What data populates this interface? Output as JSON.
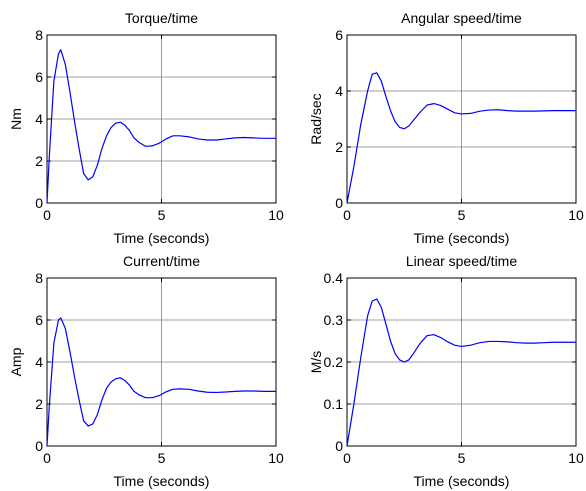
{
  "figure": {
    "background": "#ffffff",
    "line_color": "#0000ff",
    "grid_color": "#808080"
  },
  "chart_data": [
    {
      "type": "line",
      "title": "Torque/time",
      "xlabel": "Time (seconds)",
      "ylabel": "Nm",
      "xlim": [
        0,
        10
      ],
      "ylim": [
        0,
        8
      ],
      "xticks": [
        0,
        5,
        10
      ],
      "yticks": [
        0,
        2,
        4,
        6,
        8
      ],
      "xtick_labels": [
        "0",
        "5",
        "10"
      ],
      "ytick_labels": [
        "0",
        "2",
        "4",
        "6",
        "8"
      ],
      "grid": true,
      "series": [
        {
          "color": "#0000ff",
          "x": [
            0,
            0.1,
            0.3,
            0.5,
            0.6,
            0.8,
            1.0,
            1.2,
            1.4,
            1.6,
            1.8,
            2.0,
            2.2,
            2.4,
            2.6,
            2.8,
            3.0,
            3.2,
            3.4,
            3.6,
            3.8,
            4.0,
            4.3,
            4.6,
            4.9,
            5.2,
            5.5,
            5.8,
            6.2,
            6.6,
            7.0,
            7.4,
            7.8,
            8.2,
            8.6,
            9.0,
            9.5,
            10.0
          ],
          "y": [
            0,
            2.2,
            5.8,
            7.1,
            7.3,
            6.6,
            5.3,
            3.9,
            2.6,
            1.4,
            1.1,
            1.25,
            1.8,
            2.6,
            3.2,
            3.6,
            3.8,
            3.85,
            3.7,
            3.45,
            3.1,
            2.9,
            2.7,
            2.72,
            2.85,
            3.05,
            3.2,
            3.2,
            3.15,
            3.05,
            3.0,
            3.0,
            3.05,
            3.1,
            3.12,
            3.1,
            3.08,
            3.08
          ]
        }
      ]
    },
    {
      "type": "line",
      "title": "Angular speed/time",
      "xlabel": "Time (seconds)",
      "ylabel": "Rad/sec",
      "xlim": [
        0,
        10
      ],
      "ylim": [
        0,
        6
      ],
      "xticks": [
        0,
        5,
        10
      ],
      "yticks": [
        0,
        2,
        4,
        6
      ],
      "xtick_labels": [
        "0",
        "5",
        "10"
      ],
      "ytick_labels": [
        "0",
        "2",
        "4",
        "6"
      ],
      "grid": true,
      "series": [
        {
          "color": "#0000ff",
          "x": [
            0,
            0.3,
            0.6,
            0.9,
            1.1,
            1.3,
            1.5,
            1.7,
            1.9,
            2.1,
            2.3,
            2.5,
            2.7,
            2.9,
            3.2,
            3.5,
            3.8,
            4.1,
            4.4,
            4.7,
            5.0,
            5.4,
            5.8,
            6.2,
            6.6,
            7.0,
            7.4,
            7.8,
            8.2,
            8.6,
            9.0,
            9.5,
            10.0
          ],
          "y": [
            0,
            1.3,
            2.8,
            4.0,
            4.6,
            4.65,
            4.35,
            3.8,
            3.3,
            2.9,
            2.7,
            2.65,
            2.75,
            2.95,
            3.25,
            3.5,
            3.55,
            3.48,
            3.35,
            3.22,
            3.18,
            3.2,
            3.28,
            3.32,
            3.33,
            3.3,
            3.28,
            3.28,
            3.28,
            3.29,
            3.3,
            3.3,
            3.3
          ]
        }
      ]
    },
    {
      "type": "line",
      "title": "Current/time",
      "xlabel": "Time (seconds)",
      "ylabel": "Amp",
      "xlim": [
        0,
        10
      ],
      "ylim": [
        0,
        8
      ],
      "xticks": [
        0,
        5,
        10
      ],
      "yticks": [
        0,
        2,
        4,
        6,
        8
      ],
      "xtick_labels": [
        "0",
        "5",
        "10"
      ],
      "ytick_labels": [
        "0",
        "2",
        "4",
        "6",
        "8"
      ],
      "grid": true,
      "series": [
        {
          "color": "#0000ff",
          "x": [
            0,
            0.1,
            0.3,
            0.5,
            0.6,
            0.8,
            1.0,
            1.2,
            1.4,
            1.6,
            1.8,
            2.0,
            2.2,
            2.4,
            2.6,
            2.8,
            3.0,
            3.2,
            3.4,
            3.6,
            3.8,
            4.0,
            4.3,
            4.6,
            4.9,
            5.2,
            5.5,
            5.8,
            6.2,
            6.6,
            7.0,
            7.4,
            7.8,
            8.2,
            8.6,
            9.0,
            9.5,
            10.0
          ],
          "y": [
            0,
            1.9,
            4.9,
            6.0,
            6.1,
            5.6,
            4.5,
            3.3,
            2.2,
            1.2,
            0.95,
            1.05,
            1.5,
            2.2,
            2.75,
            3.05,
            3.2,
            3.25,
            3.12,
            2.9,
            2.6,
            2.45,
            2.3,
            2.3,
            2.4,
            2.58,
            2.7,
            2.72,
            2.7,
            2.62,
            2.56,
            2.55,
            2.57,
            2.6,
            2.62,
            2.62,
            2.6,
            2.6
          ]
        }
      ]
    },
    {
      "type": "line",
      "title": "Linear speed/time",
      "xlabel": "Time (seconds)",
      "ylabel": "M/s",
      "xlim": [
        0,
        10
      ],
      "ylim": [
        0,
        0.4
      ],
      "xticks": [
        0,
        5,
        10
      ],
      "yticks": [
        0,
        0.1,
        0.2,
        0.3,
        0.4
      ],
      "xtick_labels": [
        "0",
        "5",
        "10"
      ],
      "ytick_labels": [
        "0",
        "0.1",
        "0.2",
        "0.3",
        "0.4"
      ],
      "grid": true,
      "series": [
        {
          "color": "#0000ff",
          "x": [
            0,
            0.3,
            0.6,
            0.9,
            1.1,
            1.3,
            1.5,
            1.7,
            1.9,
            2.1,
            2.3,
            2.5,
            2.7,
            2.9,
            3.2,
            3.5,
            3.8,
            4.1,
            4.4,
            4.7,
            5.0,
            5.4,
            5.8,
            6.2,
            6.6,
            7.0,
            7.4,
            7.8,
            8.2,
            8.6,
            9.0,
            9.5,
            10.0
          ],
          "y": [
            0,
            0.1,
            0.21,
            0.31,
            0.345,
            0.35,
            0.33,
            0.29,
            0.25,
            0.22,
            0.205,
            0.2,
            0.205,
            0.22,
            0.245,
            0.263,
            0.265,
            0.258,
            0.248,
            0.24,
            0.237,
            0.24,
            0.246,
            0.249,
            0.249,
            0.248,
            0.246,
            0.245,
            0.245,
            0.246,
            0.247,
            0.247,
            0.247
          ]
        }
      ]
    }
  ]
}
